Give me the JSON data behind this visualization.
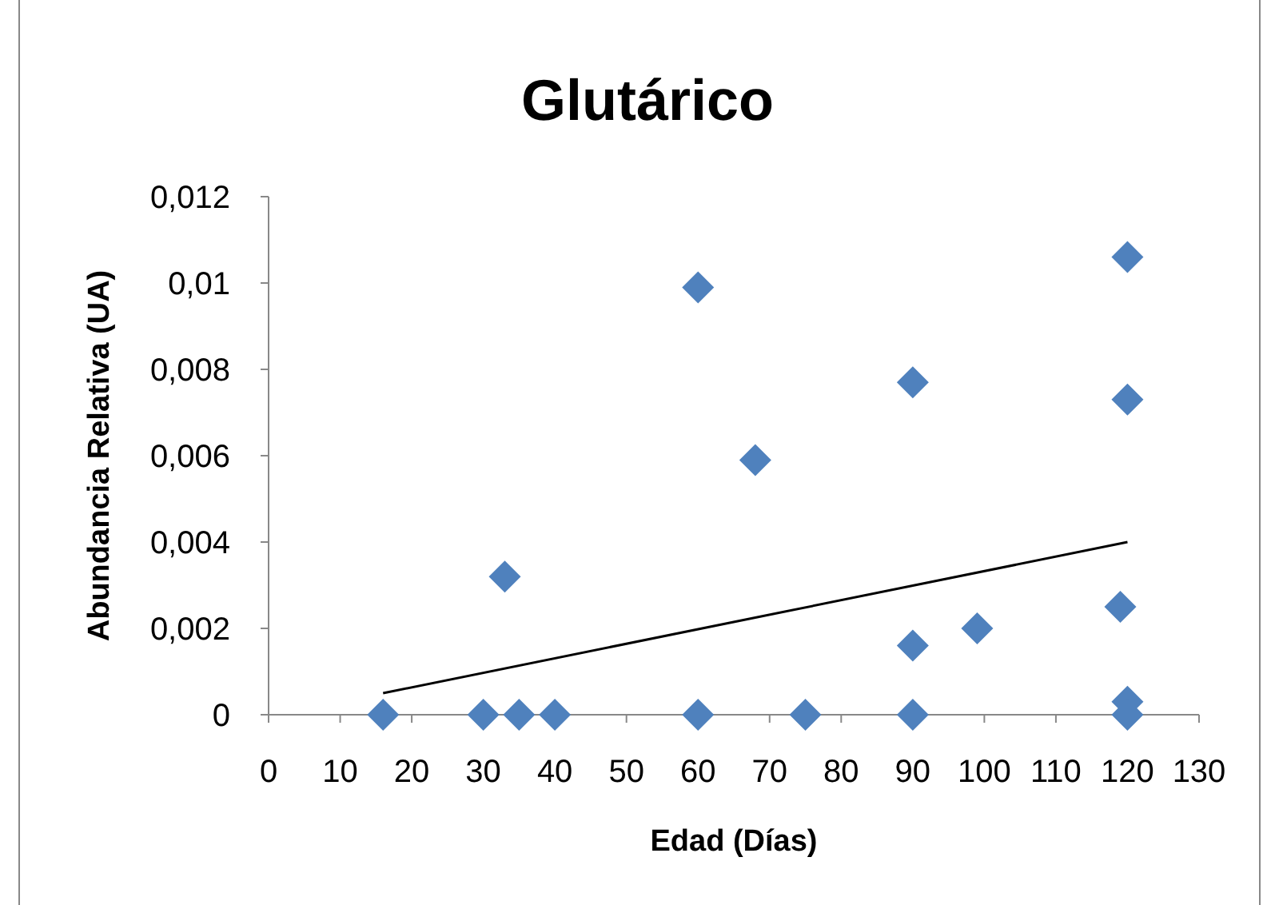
{
  "chart_data": {
    "type": "scatter",
    "title": "Glutárico",
    "xlabel": "Edad (Días)",
    "ylabel": "Abundancia Relativa (UA)",
    "xlim": [
      0,
      130
    ],
    "xticks": [
      0,
      10,
      20,
      30,
      40,
      50,
      60,
      70,
      80,
      90,
      100,
      110,
      120,
      130
    ],
    "ylim": [
      0,
      0.012
    ],
    "yticks": [
      0,
      {
        "value": 0.002,
        "label": "0,002"
      },
      {
        "value": 0.004,
        "label": "0,004"
      },
      {
        "value": 0.006,
        "label": "0,006"
      },
      {
        "value": 0.008,
        "label": "0,008"
      },
      {
        "value": 0.01,
        "label": "0,01"
      },
      {
        "value": 0.012,
        "label": "0,012"
      }
    ],
    "grid": false,
    "legend": false,
    "marker": "diamond",
    "series": [
      {
        "color": "#4f81bd",
        "x": [
          16,
          30,
          33,
          35,
          40,
          60,
          60,
          68,
          75,
          90,
          90,
          90,
          99,
          119,
          120,
          120,
          120,
          120
        ],
        "values": [
          0,
          0,
          0.0032,
          0,
          0,
          0.0099,
          0,
          0.0059,
          0,
          0.0077,
          0.0016,
          0,
          0.002,
          0.0025,
          0.0106,
          0.0073,
          0.0003,
          0
        ]
      },
      {
        "type": "line",
        "color": "#000000",
        "marker": "none",
        "x": [
          16,
          120
        ],
        "values": [
          0.0005,
          0.004
        ]
      }
    ]
  }
}
